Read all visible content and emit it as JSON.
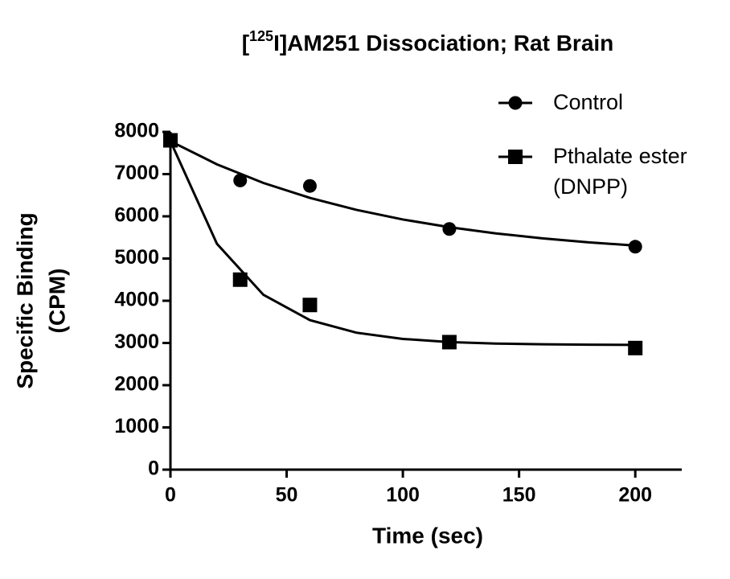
{
  "chart_data": {
    "type": "scatter",
    "title": {
      "prefix": "[",
      "superscript": "125",
      "suffix": "I]AM251 Dissociation; Rat Brain"
    },
    "x_label": "Time (sec)",
    "y_label": [
      "Specific Binding",
      "(CPM)"
    ],
    "xlim": [
      0,
      220
    ],
    "xticks": [
      0,
      50,
      100,
      150,
      200
    ],
    "ylim": [
      0,
      8000
    ],
    "yticks": [
      0,
      1000,
      2000,
      3000,
      4000,
      5000,
      6000,
      7000,
      8000
    ],
    "series": [
      {
        "name": "Control",
        "marker": "circle",
        "color": "#000000",
        "x": [
          0,
          30,
          60,
          120,
          200
        ],
        "values": [
          7800,
          6850,
          6720,
          5700,
          5280
        ],
        "fit": {
          "x": [
            0,
            20,
            40,
            60,
            80,
            100,
            120,
            140,
            160,
            180,
            200
          ],
          "values": [
            7780,
            7231,
            6790,
            6437,
            6153,
            5925,
            5743,
            5596,
            5478,
            5384,
            5308
          ]
        }
      },
      {
        "name": "Pthalate ester (DNPP)",
        "marker": "square",
        "color": "#000000",
        "x": [
          0,
          30,
          60,
          120,
          200
        ],
        "values": [
          7800,
          4500,
          3900,
          3020,
          2880
        ],
        "fit": {
          "x": [
            0,
            20,
            40,
            60,
            80,
            100,
            120,
            140,
            160,
            180,
            200
          ],
          "values": [
            7780,
            5349,
            4141,
            3542,
            3244,
            3096,
            3022,
            2986,
            2968,
            2959,
            2954
          ]
        }
      }
    ]
  }
}
